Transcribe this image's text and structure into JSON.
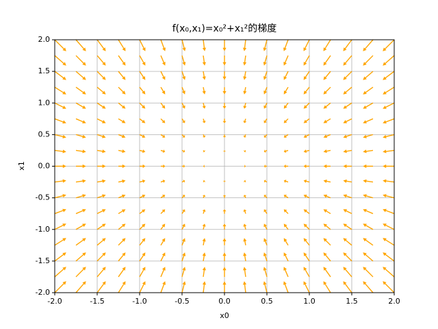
{
  "chart_data": {
    "type": "quiver",
    "title": "f(x₀,x₁)=x₀²+x₁²的梯度",
    "x_label": "x0",
    "y_label": "x1",
    "color": "#ffa500",
    "grid": true,
    "xlim": [
      -2,
      2
    ],
    "ylim": [
      -2,
      2
    ],
    "xticks": [
      {
        "value": -2,
        "label": "-2.0"
      },
      {
        "value": -1.5,
        "label": "-1.5"
      },
      {
        "value": -1,
        "label": "-1.0"
      },
      {
        "value": -0.5,
        "label": "-0.5"
      },
      {
        "value": 0,
        "label": "0.0"
      },
      {
        "value": 0.5,
        "label": "0.5"
      },
      {
        "value": 1,
        "label": "1.0"
      },
      {
        "value": 1.5,
        "label": "1.5"
      },
      {
        "value": 2,
        "label": "2.0"
      }
    ],
    "yticks": [
      {
        "value": -2,
        "label": "-2.0"
      },
      {
        "value": -1.5,
        "label": "-1.5"
      },
      {
        "value": -1,
        "label": "-1.0"
      },
      {
        "value": -0.5,
        "label": "-0.5"
      },
      {
        "value": 0,
        "label": "0.0"
      },
      {
        "value": 0.5,
        "label": "0.5"
      },
      {
        "value": 1,
        "label": "1.0"
      },
      {
        "value": 1.5,
        "label": "1.5"
      },
      {
        "value": 2,
        "label": "2.0"
      }
    ],
    "x": [
      -2,
      -1.75,
      -1.5,
      -1.25,
      -1,
      -0.75,
      -0.5,
      -0.25,
      0,
      0.25,
      0.5,
      0.75,
      1,
      1.25,
      1.5,
      1.75,
      2
    ],
    "y": [
      -2,
      -1.75,
      -1.5,
      -1.25,
      -1,
      -0.75,
      -0.5,
      -0.25,
      0,
      0.25,
      0.5,
      0.75,
      1,
      1.25,
      1.5,
      1.75,
      2
    ],
    "u": [
      [
        4,
        3.5,
        3,
        2.5,
        2,
        1.5,
        1,
        0.5,
        0,
        -0.5,
        -1,
        -1.5,
        -2,
        -2.5,
        -3,
        -3.5,
        -4
      ],
      [
        4,
        3.5,
        3,
        2.5,
        2,
        1.5,
        1,
        0.5,
        0,
        -0.5,
        -1,
        -1.5,
        -2,
        -2.5,
        -3,
        -3.5,
        -4
      ],
      [
        4,
        3.5,
        3,
        2.5,
        2,
        1.5,
        1,
        0.5,
        0,
        -0.5,
        -1,
        -1.5,
        -2,
        -2.5,
        -3,
        -3.5,
        -4
      ],
      [
        4,
        3.5,
        3,
        2.5,
        2,
        1.5,
        1,
        0.5,
        0,
        -0.5,
        -1,
        -1.5,
        -2,
        -2.5,
        -3,
        -3.5,
        -4
      ],
      [
        4,
        3.5,
        3,
        2.5,
        2,
        1.5,
        1,
        0.5,
        0,
        -0.5,
        -1,
        -1.5,
        -2,
        -2.5,
        -3,
        -3.5,
        -4
      ],
      [
        4,
        3.5,
        3,
        2.5,
        2,
        1.5,
        1,
        0.5,
        0,
        -0.5,
        -1,
        -1.5,
        -2,
        -2.5,
        -3,
        -3.5,
        -4
      ],
      [
        4,
        3.5,
        3,
        2.5,
        2,
        1.5,
        1,
        0.5,
        0,
        -0.5,
        -1,
        -1.5,
        -2,
        -2.5,
        -3,
        -3.5,
        -4
      ],
      [
        4,
        3.5,
        3,
        2.5,
        2,
        1.5,
        1,
        0.5,
        0,
        -0.5,
        -1,
        -1.5,
        -2,
        -2.5,
        -3,
        -3.5,
        -4
      ],
      [
        4,
        3.5,
        3,
        2.5,
        2,
        1.5,
        1,
        0.5,
        0,
        -0.5,
        -1,
        -1.5,
        -2,
        -2.5,
        -3,
        -3.5,
        -4
      ],
      [
        4,
        3.5,
        3,
        2.5,
        2,
        1.5,
        1,
        0.5,
        0,
        -0.5,
        -1,
        -1.5,
        -2,
        -2.5,
        -3,
        -3.5,
        -4
      ],
      [
        4,
        3.5,
        3,
        2.5,
        2,
        1.5,
        1,
        0.5,
        0,
        -0.5,
        -1,
        -1.5,
        -2,
        -2.5,
        -3,
        -3.5,
        -4
      ],
      [
        4,
        3.5,
        3,
        2.5,
        2,
        1.5,
        1,
        0.5,
        0,
        -0.5,
        -1,
        -1.5,
        -2,
        -2.5,
        -3,
        -3.5,
        -4
      ],
      [
        4,
        3.5,
        3,
        2.5,
        2,
        1.5,
        1,
        0.5,
        0,
        -0.5,
        -1,
        -1.5,
        -2,
        -2.5,
        -3,
        -3.5,
        -4
      ],
      [
        4,
        3.5,
        3,
        2.5,
        2,
        1.5,
        1,
        0.5,
        0,
        -0.5,
        -1,
        -1.5,
        -2,
        -2.5,
        -3,
        -3.5,
        -4
      ],
      [
        4,
        3.5,
        3,
        2.5,
        2,
        1.5,
        1,
        0.5,
        0,
        -0.5,
        -1,
        -1.5,
        -2,
        -2.5,
        -3,
        -3.5,
        -4
      ],
      [
        4,
        3.5,
        3,
        2.5,
        2,
        1.5,
        1,
        0.5,
        0,
        -0.5,
        -1,
        -1.5,
        -2,
        -2.5,
        -3,
        -3.5,
        -4
      ],
      [
        4,
        3.5,
        3,
        2.5,
        2,
        1.5,
        1,
        0.5,
        0,
        -0.5,
        -1,
        -1.5,
        -2,
        -2.5,
        -3,
        -3.5,
        -4
      ]
    ],
    "v": [
      [
        4,
        4,
        4,
        4,
        4,
        4,
        4,
        4,
        4,
        4,
        4,
        4,
        4,
        4,
        4,
        4,
        4
      ],
      [
        3.5,
        3.5,
        3.5,
        3.5,
        3.5,
        3.5,
        3.5,
        3.5,
        3.5,
        3.5,
        3.5,
        3.5,
        3.5,
        3.5,
        3.5,
        3.5,
        3.5
      ],
      [
        3,
        3,
        3,
        3,
        3,
        3,
        3,
        3,
        3,
        3,
        3,
        3,
        3,
        3,
        3,
        3,
        3
      ],
      [
        2.5,
        2.5,
        2.5,
        2.5,
        2.5,
        2.5,
        2.5,
        2.5,
        2.5,
        2.5,
        2.5,
        2.5,
        2.5,
        2.5,
        2.5,
        2.5,
        2.5
      ],
      [
        2,
        2,
        2,
        2,
        2,
        2,
        2,
        2,
        2,
        2,
        2,
        2,
        2,
        2,
        2,
        2,
        2
      ],
      [
        1.5,
        1.5,
        1.5,
        1.5,
        1.5,
        1.5,
        1.5,
        1.5,
        1.5,
        1.5,
        1.5,
        1.5,
        1.5,
        1.5,
        1.5,
        1.5,
        1.5
      ],
      [
        1,
        1,
        1,
        1,
        1,
        1,
        1,
        1,
        1,
        1,
        1,
        1,
        1,
        1,
        1,
        1,
        1
      ],
      [
        0.5,
        0.5,
        0.5,
        0.5,
        0.5,
        0.5,
        0.5,
        0.5,
        0.5,
        0.5,
        0.5,
        0.5,
        0.5,
        0.5,
        0.5,
        0.5,
        0.5
      ],
      [
        0,
        0,
        0,
        0,
        0,
        0,
        0,
        0,
        0,
        0,
        0,
        0,
        0,
        0,
        0,
        0,
        0
      ],
      [
        -0.5,
        -0.5,
        -0.5,
        -0.5,
        -0.5,
        -0.5,
        -0.5,
        -0.5,
        -0.5,
        -0.5,
        -0.5,
        -0.5,
        -0.5,
        -0.5,
        -0.5,
        -0.5,
        -0.5
      ],
      [
        -1,
        -1,
        -1,
        -1,
        -1,
        -1,
        -1,
        -1,
        -1,
        -1,
        -1,
        -1,
        -1,
        -1,
        -1,
        -1,
        -1
      ],
      [
        -1.5,
        -1.5,
        -1.5,
        -1.5,
        -1.5,
        -1.5,
        -1.5,
        -1.5,
        -1.5,
        -1.5,
        -1.5,
        -1.5,
        -1.5,
        -1.5,
        -1.5,
        -1.5,
        -1.5
      ],
      [
        -2,
        -2,
        -2,
        -2,
        -2,
        -2,
        -2,
        -2,
        -2,
        -2,
        -2,
        -2,
        -2,
        -2,
        -2,
        -2,
        -2
      ],
      [
        -2.5,
        -2.5,
        -2.5,
        -2.5,
        -2.5,
        -2.5,
        -2.5,
        -2.5,
        -2.5,
        -2.5,
        -2.5,
        -2.5,
        -2.5,
        -2.5,
        -2.5,
        -2.5,
        -2.5
      ],
      [
        -3,
        -3,
        -3,
        -3,
        -3,
        -3,
        -3,
        -3,
        -3,
        -3,
        -3,
        -3,
        -3,
        -3,
        -3,
        -3,
        -3
      ],
      [
        -3.5,
        -3.5,
        -3.5,
        -3.5,
        -3.5,
        -3.5,
        -3.5,
        -3.5,
        -3.5,
        -3.5,
        -3.5,
        -3.5,
        -3.5,
        -3.5,
        -3.5,
        -3.5,
        -3.5
      ],
      [
        -4,
        -4,
        -4,
        -4,
        -4,
        -4,
        -4,
        -4,
        -4,
        -4,
        -4,
        -4,
        -4,
        -4,
        -4,
        -4,
        -4
      ]
    ]
  }
}
